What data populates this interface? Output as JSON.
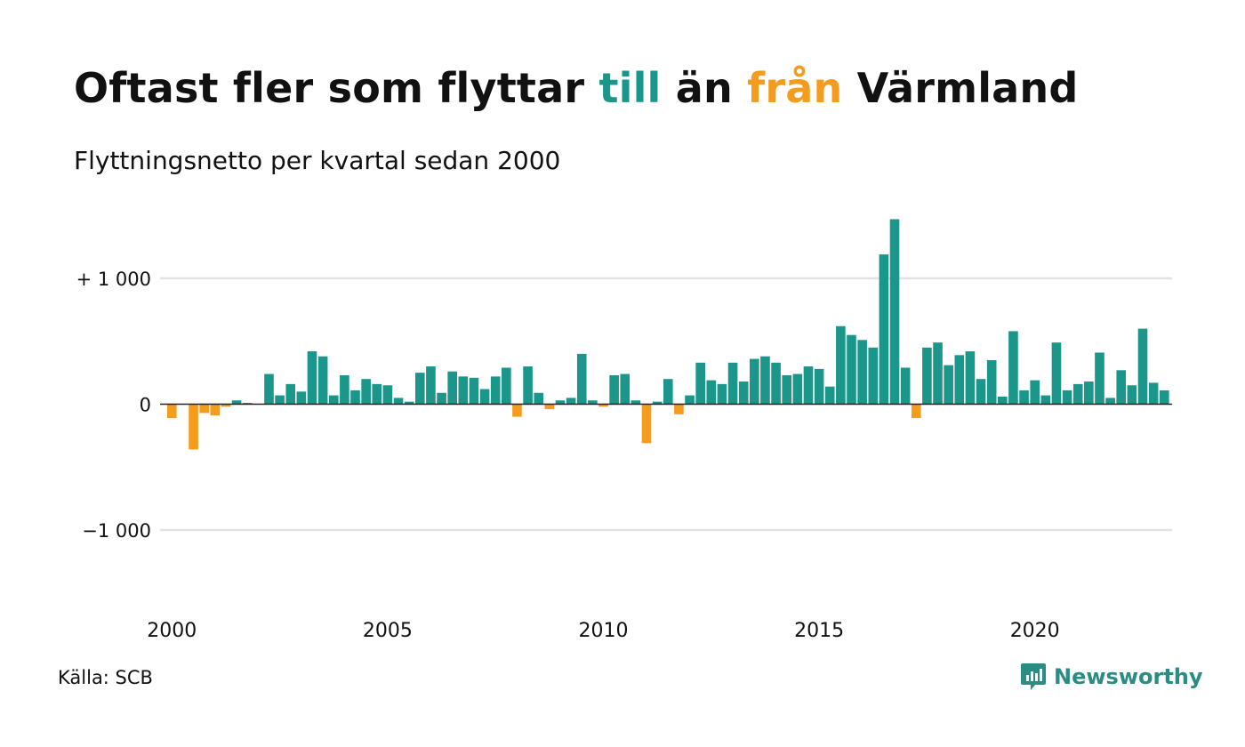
{
  "title": {
    "part1": "Oftast fler som flyttar ",
    "highlight1": "till",
    "part2": " än ",
    "highlight2": "från",
    "part3": " Värmland"
  },
  "subtitle": "Flyttningsnetto per kvartal sedan 2000",
  "source": "Källa: SCB",
  "brand": {
    "name": "Newsworthy",
    "icon": "newsworthy-logo-icon"
  },
  "colors": {
    "positive": "#1a968a",
    "negative": "#f39c1d",
    "grid": "#e3e3e3",
    "zero_line": "#222222",
    "brand": "#2a8c83"
  },
  "chart_data": {
    "type": "bar",
    "start_year": 2000,
    "start_quarter": 1,
    "frequency": "quarterly",
    "ylim": [
      -1600,
      1600
    ],
    "y_ticks": [
      {
        "value": 1000,
        "label": "+ 1 000"
      },
      {
        "value": 0,
        "label": "0"
      },
      {
        "value": -1000,
        "label": "−1 000"
      }
    ],
    "x_ticks": [
      {
        "year": 2000,
        "label": "2000"
      },
      {
        "year": 2005,
        "label": "2005"
      },
      {
        "year": 2010,
        "label": "2010"
      },
      {
        "year": 2015,
        "label": "2015"
      },
      {
        "year": 2020,
        "label": "2020"
      }
    ],
    "values": [
      -110,
      0,
      -360,
      -70,
      -90,
      -20,
      30,
      10,
      0,
      240,
      70,
      160,
      100,
      420,
      380,
      70,
      230,
      110,
      200,
      160,
      150,
      50,
      20,
      250,
      300,
      90,
      260,
      220,
      210,
      120,
      220,
      290,
      -100,
      300,
      90,
      -40,
      30,
      50,
      400,
      30,
      -20,
      230,
      240,
      30,
      -310,
      20,
      200,
      -80,
      70,
      330,
      190,
      160,
      330,
      180,
      360,
      380,
      330,
      230,
      240,
      300,
      280,
      140,
      620,
      550,
      510,
      450,
      1190,
      1470,
      290,
      -110,
      450,
      490,
      310,
      390,
      420,
      200,
      350,
      60,
      580,
      110,
      190,
      70,
      490,
      110,
      160,
      180,
      410,
      50,
      270,
      150,
      600,
      170,
      110
    ]
  }
}
